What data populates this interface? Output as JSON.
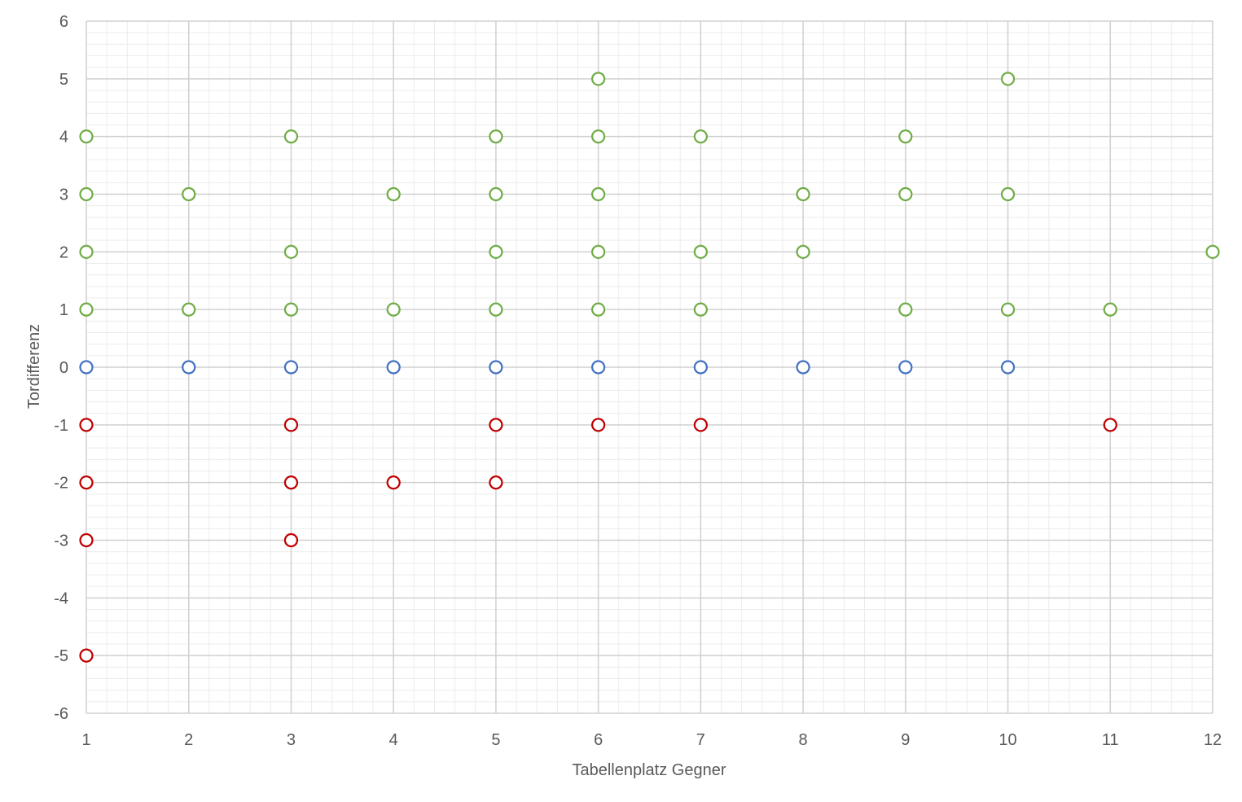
{
  "chart_data": {
    "type": "scatter",
    "title": "",
    "xlabel": "Tabellenplatz Gegner",
    "ylabel": "Tordifferenz",
    "xlim": [
      1,
      12
    ],
    "ylim": [
      -6,
      6
    ],
    "x_ticks": [
      1,
      2,
      3,
      4,
      5,
      6,
      7,
      8,
      9,
      10,
      11,
      12
    ],
    "y_ticks": [
      -6,
      -5,
      -4,
      -3,
      -2,
      -1,
      0,
      1,
      2,
      3,
      4,
      5,
      6
    ],
    "grid": {
      "major": true,
      "minor": true
    },
    "legend": "none",
    "marker": "hollow-circle",
    "series": [
      {
        "color": "#70ad47",
        "points": [
          [
            1,
            1
          ],
          [
            1,
            2
          ],
          [
            1,
            3
          ],
          [
            1,
            4
          ],
          [
            2,
            1
          ],
          [
            2,
            3
          ],
          [
            3,
            1
          ],
          [
            3,
            2
          ],
          [
            3,
            4
          ],
          [
            4,
            1
          ],
          [
            4,
            3
          ],
          [
            5,
            1
          ],
          [
            5,
            2
          ],
          [
            5,
            3
          ],
          [
            5,
            4
          ],
          [
            6,
            1
          ],
          [
            6,
            2
          ],
          [
            6,
            3
          ],
          [
            6,
            4
          ],
          [
            6,
            5
          ],
          [
            7,
            1
          ],
          [
            7,
            2
          ],
          [
            7,
            4
          ],
          [
            8,
            2
          ],
          [
            8,
            3
          ],
          [
            9,
            1
          ],
          [
            9,
            3
          ],
          [
            9,
            4
          ],
          [
            10,
            1
          ],
          [
            10,
            3
          ],
          [
            10,
            5
          ],
          [
            11,
            1
          ],
          [
            12,
            2
          ]
        ]
      },
      {
        "color": "#4472c4",
        "points": [
          [
            1,
            0
          ],
          [
            2,
            0
          ],
          [
            3,
            0
          ],
          [
            4,
            0
          ],
          [
            5,
            0
          ],
          [
            6,
            0
          ],
          [
            7,
            0
          ],
          [
            8,
            0
          ],
          [
            9,
            0
          ],
          [
            10,
            0
          ]
        ]
      },
      {
        "color": "#c00000",
        "points": [
          [
            1,
            -1
          ],
          [
            1,
            -2
          ],
          [
            1,
            -3
          ],
          [
            1,
            -5
          ],
          [
            3,
            -1
          ],
          [
            3,
            -2
          ],
          [
            3,
            -3
          ],
          [
            4,
            -2
          ],
          [
            5,
            -1
          ],
          [
            5,
            -2
          ],
          [
            6,
            -1
          ],
          [
            7,
            -1
          ],
          [
            11,
            -1
          ]
        ]
      }
    ]
  }
}
